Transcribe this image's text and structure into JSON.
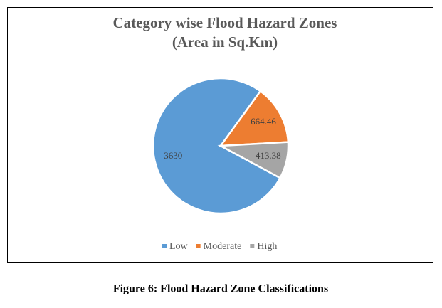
{
  "chart_data": {
    "type": "pie",
    "title": "Category wise Flood Hazard Zones",
    "subtitle": "(Area in Sq.Km)",
    "categories": [
      "Low",
      "Moderate",
      "High"
    ],
    "values": [
      3630,
      664.46,
      413.38
    ],
    "colors": [
      "#5b9bd5",
      "#ed7d31",
      "#a5a5a5"
    ],
    "legend": "bottom"
  },
  "caption": "Figure 6: Flood Hazard Zone Classifications"
}
